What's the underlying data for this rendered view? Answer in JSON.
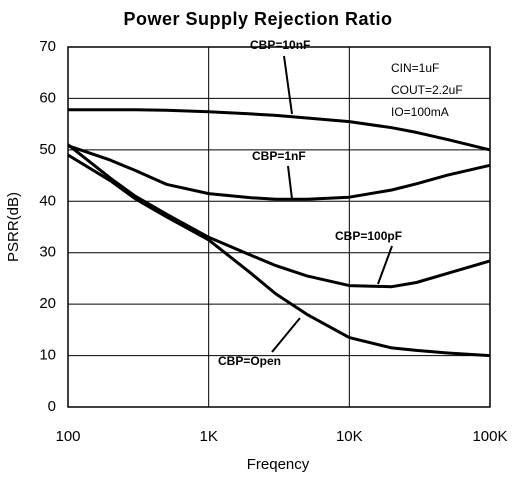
{
  "chart_data": {
    "type": "line",
    "title": "Power Supply Rejection Ratio",
    "xlabel": "Freqency",
    "ylabel": "PSRR(dB)",
    "xscale": "log",
    "grid": true,
    "x": [
      100,
      200,
      300,
      500,
      1000,
      2000,
      3000,
      5000,
      10000,
      20000,
      30000,
      50000,
      100000
    ],
    "xlim": [
      100,
      100000
    ],
    "xticks": [
      100,
      {
        "value": 1000,
        "label": "1K"
      },
      {
        "value": 10000,
        "label": "10K"
      },
      {
        "value": 100000,
        "label": "100K"
      }
    ],
    "ylim": [
      0,
      70
    ],
    "yticks": [
      0,
      10,
      20,
      30,
      40,
      50,
      60,
      70
    ],
    "series": [
      {
        "name": "CBP=10nF",
        "color": "#000000",
        "values": [
          57.8,
          57.8,
          57.8,
          57.7,
          57.4,
          57,
          56.7,
          56.2,
          55.5,
          54.3,
          53.4,
          52,
          50
        ]
      },
      {
        "name": "CBP=1nF",
        "color": "#000000",
        "values": [
          50.8,
          48,
          46,
          43.3,
          41.5,
          40.7,
          40.4,
          40.4,
          40.8,
          42.2,
          43.4,
          45.1,
          47
        ]
      },
      {
        "name": "CBP=100pF",
        "color": "#000000",
        "values": [
          51,
          44.5,
          41,
          37.5,
          33,
          29.5,
          27.5,
          25.5,
          23.6,
          23.4,
          24.2,
          26,
          28.4
        ]
      },
      {
        "name": "CBP=Open",
        "color": "#000000",
        "values": [
          49,
          44,
          40.5,
          37,
          32.5,
          26,
          22,
          18,
          13.5,
          11.5,
          11,
          10.5,
          10
        ]
      }
    ],
    "annotations": [
      "CIN=1uF",
      "COUT=2.2uF",
      "IO=100mA"
    ]
  }
}
